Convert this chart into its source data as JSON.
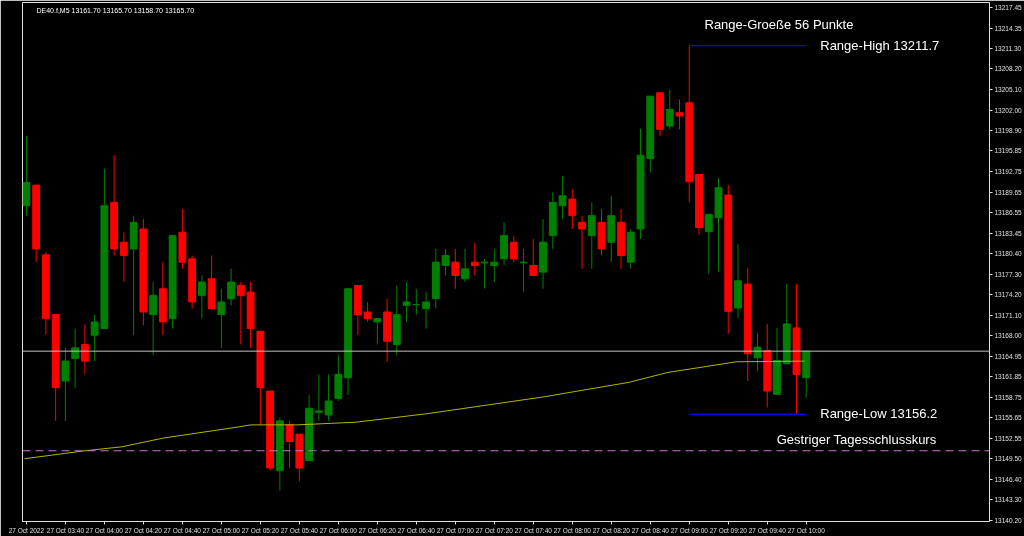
{
  "chart_data": {
    "type": "candlestick",
    "title": "DE40.f,M5  13161.70 13165.70 13158.70 13165.70",
    "x": [
      "2022-10-27T03:20",
      "2022-10-27T03:25",
      "2022-10-27T03:30",
      "2022-10-27T03:35",
      "2022-10-27T03:40",
      "2022-10-27T03:45",
      "2022-10-27T03:50",
      "2022-10-27T03:55",
      "2022-10-27T04:00",
      "2022-10-27T04:05",
      "2022-10-27T04:10",
      "2022-10-27T04:15",
      "2022-10-27T04:20",
      "2022-10-27T04:25",
      "2022-10-27T04:30",
      "2022-10-27T04:35",
      "2022-10-27T04:40",
      "2022-10-27T04:45",
      "2022-10-27T04:50",
      "2022-10-27T04:55",
      "2022-10-27T05:00",
      "2022-10-27T05:05",
      "2022-10-27T05:10",
      "2022-10-27T05:15",
      "2022-10-27T05:20",
      "2022-10-27T05:25",
      "2022-10-27T05:30",
      "2022-10-27T05:35",
      "2022-10-27T05:40",
      "2022-10-27T05:45",
      "2022-10-27T05:50",
      "2022-10-27T05:55",
      "2022-10-27T06:00",
      "2022-10-27T06:05",
      "2022-10-27T06:10",
      "2022-10-27T06:15",
      "2022-10-27T06:20",
      "2022-10-27T06:25",
      "2022-10-27T06:30",
      "2022-10-27T06:35",
      "2022-10-27T06:40",
      "2022-10-27T06:45",
      "2022-10-27T06:50",
      "2022-10-27T06:55",
      "2022-10-27T07:00",
      "2022-10-27T07:05",
      "2022-10-27T07:10",
      "2022-10-27T07:15",
      "2022-10-27T07:20",
      "2022-10-27T07:25",
      "2022-10-27T07:30",
      "2022-10-27T07:35",
      "2022-10-27T07:40",
      "2022-10-27T07:45",
      "2022-10-27T07:50",
      "2022-10-27T07:55",
      "2022-10-27T08:00",
      "2022-10-27T08:05",
      "2022-10-27T08:10",
      "2022-10-27T08:15",
      "2022-10-27T08:20",
      "2022-10-27T08:25",
      "2022-10-27T08:30",
      "2022-10-27T08:35",
      "2022-10-27T08:40",
      "2022-10-27T08:45",
      "2022-10-27T08:50",
      "2022-10-27T08:55",
      "2022-10-27T09:00",
      "2022-10-27T09:05",
      "2022-10-27T09:10",
      "2022-10-27T09:15",
      "2022-10-27T09:20",
      "2022-10-27T09:25",
      "2022-10-27T09:30",
      "2022-10-27T09:35",
      "2022-10-27T09:40",
      "2022-10-27T09:45",
      "2022-10-27T09:50",
      "2022-10-27T09:55",
      "2022-10-27T10:00"
    ],
    "ohlc": [
      [
        13187.6,
        13198.1,
        13186.1,
        13191.1
      ],
      [
        13190.7,
        13190.7,
        13179.1,
        13181.1
      ],
      [
        13180.2,
        13180.6,
        13168.2,
        13170.6
      ],
      [
        13171.2,
        13171.2,
        13155.2,
        13160.2
      ],
      [
        13161.2,
        13166.2,
        13155.2,
        13164.2
      ],
      [
        13164.6,
        13169.1,
        13160.2,
        13166.2
      ],
      [
        13166.7,
        13169.7,
        13162.2,
        13164.2
      ],
      [
        13168.1,
        13171.2,
        13164.2,
        13170.1
      ],
      [
        13169.1,
        13193.2,
        13169.1,
        13187.6
      ],
      [
        13188.1,
        13195.2,
        13180.1,
        13181.1
      ],
      [
        13182.1,
        13183.6,
        13176.1,
        13180.1
      ],
      [
        13181.1,
        13186.1,
        13168.1,
        13185.1
      ],
      [
        13184.1,
        13185.6,
        13169.6,
        13171.6
      ],
      [
        13171.2,
        13176.1,
        13165.1,
        13174.1
      ],
      [
        13175.1,
        13179.1,
        13168.1,
        13170.1
      ],
      [
        13170.6,
        13183.1,
        13169.1,
        13183.1
      ],
      [
        13183.6,
        13187.1,
        13178.1,
        13179.1
      ],
      [
        13179.6,
        13180.1,
        13172.1,
        13173.1
      ],
      [
        13174.1,
        13177.1,
        13170.6,
        13176.1
      ],
      [
        13176.6,
        13180.1,
        13172.1,
        13172.1
      ],
      [
        13171.2,
        13175.1,
        13166.2,
        13173.1
      ],
      [
        13173.6,
        13178.1,
        13172.6,
        13176.1
      ],
      [
        13175.6,
        13176.1,
        13166.7,
        13174.1
      ],
      [
        13174.6,
        13176.1,
        13166.2,
        13169.1
      ],
      [
        13168.7,
        13168.7,
        13154.6,
        13160.2
      ],
      [
        13159.7,
        13159.7,
        13147.7,
        13148.1
      ],
      [
        13147.7,
        13155.7,
        13144.7,
        13155.2
      ],
      [
        13154.6,
        13155.2,
        13148.1,
        13152.1
      ],
      [
        13153.2,
        13153.2,
        13146.1,
        13148.1
      ],
      [
        13149.2,
        13159.1,
        13149.2,
        13157.1
      ],
      [
        13156.5,
        13162.2,
        13155.2,
        13156.7
      ],
      [
        13156.1,
        13162.2,
        13155.2,
        13158.2
      ],
      [
        13158.6,
        13165.1,
        13158.2,
        13162.2
      ],
      [
        13161.7,
        13175.1,
        13159.1,
        13175.1
      ],
      [
        13175.6,
        13175.6,
        13168.1,
        13171.2
      ],
      [
        13171.6,
        13173.1,
        13170.1,
        13170.6
      ],
      [
        13170.1,
        13170.6,
        13166.7,
        13170.6
      ],
      [
        13171.6,
        13173.6,
        13164.1,
        13167.2
      ],
      [
        13166.7,
        13175.6,
        13165.1,
        13171.2
      ],
      [
        13172.6,
        13176.1,
        13170.1,
        13173.1
      ],
      [
        13172.7,
        13175.1,
        13171.2,
        13172.7
      ],
      [
        13172.1,
        13174.6,
        13169.1,
        13173.1
      ],
      [
        13173.6,
        13181.1,
        13172.1,
        13179.1
      ],
      [
        13178.6,
        13181.1,
        13177.1,
        13180.1
      ],
      [
        13179.1,
        13181.1,
        13175.1,
        13177.1
      ],
      [
        13176.6,
        13181.1,
        13176.1,
        13178.1
      ],
      [
        13179.1,
        13182.1,
        13177.1,
        13178.6
      ],
      [
        13179.0,
        13179.6,
        13175.1,
        13179.1
      ],
      [
        13178.6,
        13181.1,
        13176.1,
        13179.1
      ],
      [
        13179.6,
        13185.1,
        13178.6,
        13183.1
      ],
      [
        13182.1,
        13183.1,
        13179.1,
        13179.6
      ],
      [
        13179.0,
        13181.1,
        13174.6,
        13179.1
      ],
      [
        13178.6,
        13182.6,
        13177.1,
        13177.1
      ],
      [
        13177.6,
        13185.6,
        13175.1,
        13182.1
      ],
      [
        13183.1,
        13189.6,
        13181.1,
        13188.1
      ],
      [
        13187.6,
        13192.1,
        13185.6,
        13189.1
      ],
      [
        13188.6,
        13190.1,
        13184.1,
        13186.1
      ],
      [
        13185.1,
        13186.1,
        13178.1,
        13184.1
      ],
      [
        13183.1,
        13188.1,
        13178.1,
        13186.1
      ],
      [
        13185.1,
        13187.1,
        13180.1,
        13181.1
      ],
      [
        13182.1,
        13189.1,
        13179.1,
        13186.1
      ],
      [
        13185.1,
        13187.1,
        13178.1,
        13180.1
      ],
      [
        13179.1,
        13184.1,
        13178.1,
        13183.6
      ],
      [
        13184.1,
        13199.2,
        13182.6,
        13195.2
      ],
      [
        13194.7,
        13204.1,
        13192.6,
        13204.1
      ],
      [
        13204.6,
        13204.6,
        13198.1,
        13199.1
      ],
      [
        13199.6,
        13205.1,
        13199.1,
        13202.1
      ],
      [
        13201.6,
        13203.6,
        13199.1,
        13201.1
      ],
      [
        13203.1,
        13211.7,
        13188.1,
        13191.2
      ],
      [
        13192.3,
        13192.3,
        13183.2,
        13184.3
      ],
      [
        13183.7,
        13186.3,
        13177.3,
        13186.3
      ],
      [
        13185.8,
        13191.8,
        13177.7,
        13190.3
      ],
      [
        13189.2,
        13190.7,
        13168.3,
        13171.7
      ],
      [
        13172.2,
        13181.8,
        13170.7,
        13176.3
      ],
      [
        13175.8,
        13178.2,
        13161.2,
        13165.3
      ],
      [
        13164.7,
        13168.4,
        13162.7,
        13166.3
      ],
      [
        13165.8,
        13169.8,
        13157.2,
        13159.7
      ],
      [
        13159.2,
        13169.2,
        13159.2,
        13164.3
      ],
      [
        13163.8,
        13175.8,
        13163.8,
        13169.8
      ],
      [
        13169.2,
        13175.8,
        13156.2,
        13162.2
      ],
      [
        13161.7,
        13165.7,
        13158.7,
        13165.7
      ]
    ],
    "colors": [
      "#008000",
      "#ff0000",
      "#ff0000",
      "#ff0000",
      "#008000",
      "#008000",
      "#ff0000",
      "#008000",
      "#008000",
      "#ff0000",
      "#ff0000",
      "#008000",
      "#ff0000",
      "#008000",
      "#ff0000",
      "#008000",
      "#ff0000",
      "#ff0000",
      "#008000",
      "#ff0000",
      "#008000",
      "#008000",
      "#ff0000",
      "#ff0000",
      "#ff0000",
      "#ff0000",
      "#008000",
      "#ff0000",
      "#ff0000",
      "#008000",
      "#008000",
      "#008000",
      "#008000",
      "#008000",
      "#ff0000",
      "#ff0000",
      "#008000",
      "#ff0000",
      "#008000",
      "#008000",
      "#008000",
      "#008000",
      "#008000",
      "#008000",
      "#ff0000",
      "#008000",
      "#ff0000",
      "#008000",
      "#008000",
      "#008000",
      "#ff0000",
      "#008000",
      "#ff0000",
      "#008000",
      "#008000",
      "#008000",
      "#ff0000",
      "#ff0000",
      "#008000",
      "#ff0000",
      "#008000",
      "#ff0000",
      "#008000",
      "#008000",
      "#008000",
      "#ff0000",
      "#008000",
      "#ff0000",
      "#ff0000",
      "#ff0000",
      "#008000",
      "#008000",
      "#ff0000",
      "#008000",
      "#ff0000",
      "#008000",
      "#ff0000",
      "#008000",
      "#008000",
      "#ff0000",
      "#008000"
    ],
    "series": [
      {
        "type": "line",
        "color": "#b4b400",
        "x": [
          "2022-10-27T03:19",
          "2022-10-27T03:50",
          "2022-10-27T04:09",
          "2022-10-27T04:30",
          "2022-10-27T05:09",
          "2022-10-27T05:15",
          "2022-10-27T05:39",
          "2022-10-27T06:09",
          "2022-10-27T06:46",
          "2022-10-27T07:45",
          "2022-10-27T08:29",
          "2022-10-27T08:49",
          "2022-10-27T09:09",
          "2022-10-27T09:24",
          "2022-10-27T09:59"
        ],
        "values": [
          13149.5,
          13150.7,
          13151.3,
          13152.6,
          13154.3,
          13154.6,
          13154.6,
          13155.0,
          13156.3,
          13158.8,
          13161.0,
          13162.5,
          13163.4,
          13164.1,
          13164.2
        ]
      },
      {
        "type": "line",
        "name": "Range-High 13211.7",
        "color": "#0000ff",
        "x": [
          "2022-10-27T09:00",
          "2022-10-27T10:00"
        ],
        "values": [
          13211.7,
          13211.7
        ]
      },
      {
        "type": "line",
        "name": "Range-Low 13156.2",
        "color": "#0000ff",
        "x": [
          "2022-10-27T09:00",
          "2022-10-27T10:00"
        ],
        "values": [
          13156.2,
          13156.2
        ]
      }
    ],
    "ref_lines": [
      {
        "axis": "y",
        "value": 13165.7,
        "color": "#c0c0c0",
        "line_style": "solid"
      },
      {
        "axis": "y",
        "value": 13150.7,
        "label": "Gestriger Tagesschlusskurs",
        "color": "#c878c8",
        "line_style": "dashed"
      }
    ],
    "annotations": [
      "Range-Groeße 56 Punkte"
    ],
    "xlim": [
      "2022-10-27T03:18",
      "2022-10-27T11:34"
    ],
    "ylim": [
      13140.05,
      13218.2
    ],
    "xticks": [
      {
        "value": "2022-10-27T03:20",
        "label": "27 Oct 2022"
      },
      {
        "value": "2022-10-27T03:40",
        "label": "27 Oct 03:40"
      },
      {
        "value": "2022-10-27T04:00",
        "label": "27 Oct 04:00"
      },
      {
        "value": "2022-10-27T04:20",
        "label": "27 Oct 04:20"
      },
      {
        "value": "2022-10-27T04:40",
        "label": "27 Oct 04:40"
      },
      {
        "value": "2022-10-27T05:00",
        "label": "27 Oct 05:00"
      },
      {
        "value": "2022-10-27T05:20",
        "label": "27 Oct 05:20"
      },
      {
        "value": "2022-10-27T05:40",
        "label": "27 Oct 05:40"
      },
      {
        "value": "2022-10-27T06:00",
        "label": "27 Oct 06:00"
      },
      {
        "value": "2022-10-27T06:20",
        "label": "27 Oct 06:20"
      },
      {
        "value": "2022-10-27T06:40",
        "label": "27 Oct 06:40"
      },
      {
        "value": "2022-10-27T07:00",
        "label": "27 Oct 07:00"
      },
      {
        "value": "2022-10-27T07:20",
        "label": "27 Oct 07:20"
      },
      {
        "value": "2022-10-27T07:40",
        "label": "27 Oct 07:40"
      },
      {
        "value": "2022-10-27T08:00",
        "label": "27 Oct 08:00"
      },
      {
        "value": "2022-10-27T08:20",
        "label": "27 Oct 08:20"
      },
      {
        "value": "2022-10-27T08:40",
        "label": "27 Oct 08:40"
      },
      {
        "value": "2022-10-27T09:00",
        "label": "27 Oct 09:00"
      },
      {
        "value": "2022-10-27T09:20",
        "label": "27 Oct 09:20"
      },
      {
        "value": "2022-10-27T09:40",
        "label": "27 Oct 09:40"
      },
      {
        "value": "2022-10-27T10:00",
        "label": "27 Oct 10:00"
      }
    ],
    "yticks": [
      {
        "value": 13140.2,
        "label": "13140.20"
      },
      {
        "value": 13143.3,
        "label": "13143.30"
      },
      {
        "value": 13146.4,
        "label": "13146.40"
      },
      {
        "value": 13149.5,
        "label": "13149.50"
      },
      {
        "value": 13152.55,
        "label": "13152.55"
      },
      {
        "value": 13155.65,
        "label": "13155.65"
      },
      {
        "value": 13158.75,
        "label": "13158.75"
      },
      {
        "value": 13161.85,
        "label": "13161.85"
      },
      {
        "value": 13164.95,
        "label": "13164.95"
      },
      {
        "value": 13168.0,
        "label": "13168.00"
      },
      {
        "value": 13171.1,
        "label": "13171.10"
      },
      {
        "value": 13174.2,
        "label": "13174.20"
      },
      {
        "value": 13177.3,
        "label": "13177.30"
      },
      {
        "value": 13180.4,
        "label": "13180.40"
      },
      {
        "value": 13183.45,
        "label": "13183.45"
      },
      {
        "value": 13186.55,
        "label": "13186.55"
      },
      {
        "value": 13189.65,
        "label": "13189.65"
      },
      {
        "value": 13192.75,
        "label": "13192.75"
      },
      {
        "value": 13195.85,
        "label": "13195.85"
      },
      {
        "value": 13198.9,
        "label": "13198.90"
      },
      {
        "value": 13202.0,
        "label": "13202.00"
      },
      {
        "value": 13205.1,
        "label": "13205.10"
      },
      {
        "value": 13208.2,
        "label": "13208.20"
      },
      {
        "value": 13211.3,
        "label": "13211.30"
      },
      {
        "value": 13214.35,
        "label": "13214.35"
      },
      {
        "value": 13217.45,
        "label": "13217.45"
      }
    ],
    "grid": false
  }
}
